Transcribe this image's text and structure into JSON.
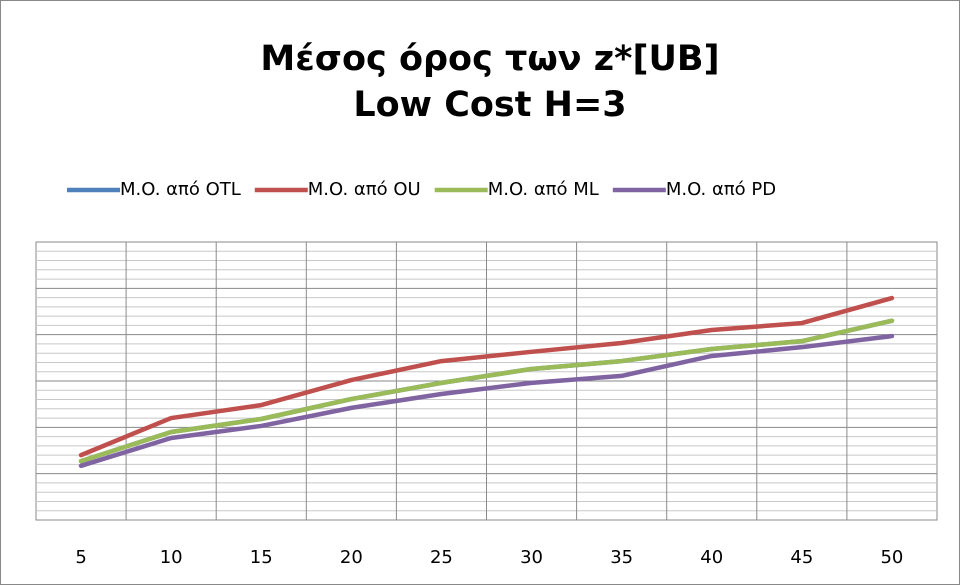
{
  "chart_data": {
    "type": "line",
    "title": [
      "Μέσος όρος των z*[UB]",
      "Low Cost H=3"
    ],
    "categories": [
      "5",
      "10",
      "15",
      "20",
      "25",
      "30",
      "35",
      "40",
      "45",
      "50"
    ],
    "series": [
      {
        "name": "M.O. από OTL",
        "color": "#4f81bd",
        "values": [
          1.27,
          1.9,
          2.18,
          2.61,
          2.96,
          3.26,
          3.43,
          3.69,
          3.86,
          4.3
        ]
      },
      {
        "name": "M.O. από OU",
        "color": "#c0504d",
        "values": [
          1.4,
          2.2,
          2.48,
          3.02,
          3.43,
          3.63,
          3.82,
          4.1,
          4.25,
          4.79
        ]
      },
      {
        "name": "M.O. από ML",
        "color": "#9bbb59",
        "values": [
          1.27,
          1.9,
          2.18,
          2.61,
          2.96,
          3.26,
          3.43,
          3.69,
          3.86,
          4.3
        ]
      },
      {
        "name": "M.O. από PD",
        "color": "#8064a2",
        "values": [
          1.17,
          1.77,
          2.03,
          2.42,
          2.72,
          2.96,
          3.11,
          3.54,
          3.73,
          3.97
        ]
      }
    ],
    "ylim": [
      0,
      6
    ],
    "yticks": [
      0,
      1,
      2,
      3,
      4,
      5,
      6
    ],
    "y_minor_ticks": [
      0.2,
      0.4,
      0.6,
      0.8,
      1.2,
      1.4,
      1.6,
      1.8,
      2.2,
      2.4,
      2.6,
      2.8,
      3.2,
      3.4,
      3.6,
      3.8,
      4.2,
      4.4,
      4.6,
      4.8,
      5.2,
      5.4,
      5.6,
      5.8
    ],
    "grid": true,
    "legend": "top"
  }
}
